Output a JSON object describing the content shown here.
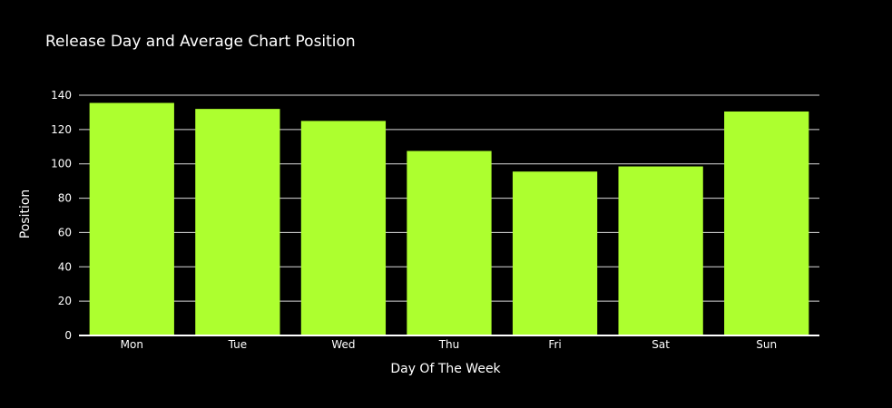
{
  "chart_data": {
    "type": "bar",
    "title": "Release Day and Average Chart Position",
    "xlabel": "Day Of The Week",
    "ylabel": "Position",
    "categories": [
      "Mon",
      "Tue",
      "Wed",
      "Thu",
      "Fri",
      "Sat",
      "Sun"
    ],
    "values": [
      135.5,
      132,
      125,
      107.5,
      95.5,
      98.5,
      130.5
    ],
    "ylim": [
      0,
      140
    ],
    "yticks": [
      0,
      20,
      40,
      60,
      80,
      100,
      120,
      140
    ],
    "grid": true,
    "legend": "none",
    "colors": {
      "background": "#000000",
      "bar": "#adff2f",
      "text": "#ffffff",
      "grid": "#ffffff"
    }
  }
}
